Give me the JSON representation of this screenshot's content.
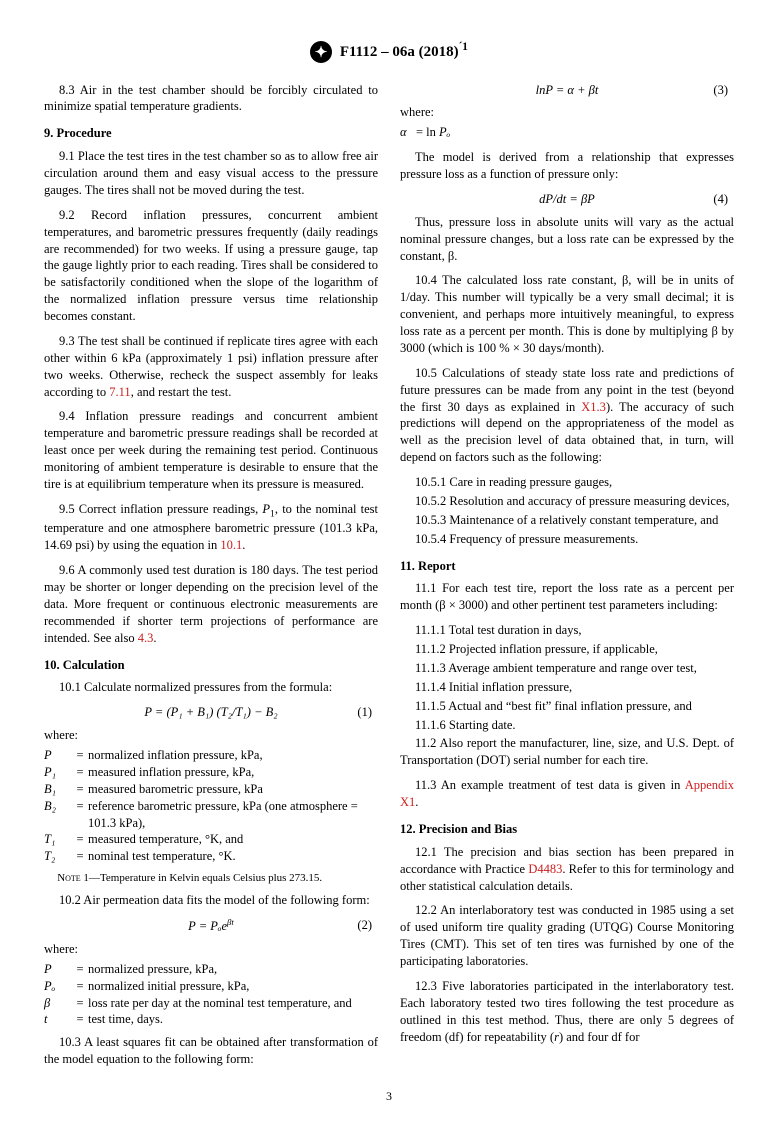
{
  "colors": {
    "link": "#cc2020",
    "text": "#000000",
    "background": "#ffffff"
  },
  "header": {
    "designation": "F1112 – 06a (2018)",
    "eps": "´1"
  },
  "footer": {
    "page": "3"
  },
  "s8": {
    "p3": "8.3 Air in the test chamber should be forcibly circulated to minimize spatial temperature gradients."
  },
  "s9": {
    "title": "9.  Procedure",
    "p1": "9.1 Place the test tires in the test chamber so as to allow free air circulation around them and easy visual access to the pressure gauges. The tires shall not be moved during the test.",
    "p2": "9.2 Record inflation pressures, concurrent ambient temperatures, and barometric pressures frequently (daily readings are recommended) for two weeks. If using a pressure gauge, tap the gauge lightly prior to each reading. Tires shall be considered to be satisfactorily conditioned when the slope of the logarithm of the normalized inflation pressure versus time relationship becomes constant.",
    "p3a": "9.3 The test shall be continued if replicate tires agree with each other within 6 kPa (approximately 1 psi) inflation pressure after two weeks. Otherwise, recheck the suspect assembly for leaks according to ",
    "p3link": "7.11",
    "p3b": ", and restart the test.",
    "p4": "9.4 Inflation pressure readings and concurrent ambient temperature and barometric pressure readings shall be recorded at least once per week during the remaining test period. Continuous monitoring of ambient temperature is desirable to ensure that the tire is at equilibrium temperature when its pressure is measured.",
    "p5a": "9.5 Correct inflation pressure readings, ",
    "p5sym": "P",
    "p5b": ", to the nominal test temperature and one atmosphere barometric pressure (101.3 kPa, 14.69 psi) by using the equation in ",
    "p5link": "10.1",
    "p5c": ".",
    "p6a": "9.6 A commonly used test duration is 180 days. The test period may be shorter or longer depending on the precision level of the data. More frequent or continuous electronic measurements are recommended if shorter term projections of performance are intended. See also ",
    "p6link": "4.3",
    "p6b": "."
  },
  "s10": {
    "title": "10.  Calculation",
    "p1": "10.1 Calculate normalized pressures from the formula:",
    "eq1": "P = (P₁ + B₁) (T₂/T₁) − B₂",
    "eq1n": "(1)",
    "where": "where:",
    "d1": {
      "s": "P",
      "t": "normalized inflation pressure, kPa,"
    },
    "d2": {
      "s": "P₁",
      "t": "measured inflation pressure, kPa,"
    },
    "d3": {
      "s": "B₁",
      "t": "measured barometric pressure, kPa"
    },
    "d4": {
      "s": "B₂",
      "t": "reference barometric pressure, kPa (one atmosphere = 101.3 kPa),"
    },
    "d5": {
      "s": "T₁",
      "t": "measured temperature, °K, and"
    },
    "d6": {
      "s": "T₂",
      "t": "nominal test temperature, °K."
    },
    "note1a": "Note 1—",
    "note1b": "Temperature in Kelvin equals Celsius plus 273.15.",
    "p2": "10.2 Air permeation data fits the model of the following form:",
    "eq2": "P = Pₒe",
    "eq2exp": "βt",
    "eq2n": "(2)",
    "d7": {
      "s": "P",
      "t": "normalized pressure, kPa,"
    },
    "d8": {
      "s": "Pₒ",
      "t": "normalized initial pressure, kPa,"
    },
    "d9": {
      "s": "β",
      "t": "loss rate per day at the nominal test temperature, and"
    },
    "d10": {
      "s": "t",
      "t": "test time, days."
    },
    "p3": "10.3 A least squares fit can be obtained after transformation of the model equation to the following form:",
    "eq3": "lnP = α + βt",
    "eq3n": "(3)",
    "d11a": "α",
    "d11b": "= ln ",
    "d11c": "Pₒ",
    "p3b": "The model is derived from a relationship that expresses pressure loss as a function of pressure only:",
    "eq4": "dP/dt = βP",
    "eq4n": "(4)",
    "p3c": "Thus, pressure loss in absolute units will vary as the actual nominal pressure changes, but a loss rate can be expressed by the constant, β.",
    "p4": "10.4 The calculated loss rate constant, β, will be in units of 1/day. This number will typically be a very small decimal; it is convenient, and perhaps more intuitively meaningful, to express loss rate as a percent per month. This is done by multiplying β by 3000 (which is 100 % × 30 days/month).",
    "p5a": "10.5 Calculations of steady state loss rate and predictions of future pressures can be made from any point in the test (beyond the first 30 days as explained in ",
    "p5link": "X1.3",
    "p5b": "). The accuracy of such predictions will depend on the appropriateness of the model as well as the precision level of data obtained that, in turn, will depend on factors such as the following:",
    "p51": "10.5.1 Care in reading pressure gauges,",
    "p52": "10.5.2 Resolution and accuracy of pressure measuring devices,",
    "p53": "10.5.3 Maintenance of a relatively constant temperature, and",
    "p54": "10.5.4 Frequency of pressure measurements."
  },
  "s11": {
    "title": "11.  Report",
    "p1": "11.1 For each test tire, report the loss rate as a percent per month (β × 3000) and other pertinent test parameters including:",
    "p11": "11.1.1 Total test duration in days,",
    "p12": "11.1.2 Projected inflation pressure, if applicable,",
    "p13": "11.1.3 Average ambient temperature and range over test,",
    "p14": "11.1.4 Initial inflation pressure,",
    "p15": "11.1.5 Actual and “best fit” final inflation pressure, and",
    "p16": "11.1.6 Starting date.",
    "p2": "11.2 Also report the manufacturer, line, size, and U.S. Dept. of Transportation (DOT) serial number for each tire.",
    "p3a": "11.3 An example treatment of test data is given in ",
    "p3link": "Appendix X1",
    "p3b": "."
  },
  "s12": {
    "title": "12.  Precision and Bias",
    "p1a": "12.1 The precision and bias section has been prepared in accordance with Practice ",
    "p1link": "D4483",
    "p1b": ". Refer to this for terminology and other statistical calculation details.",
    "p2": "12.2 An interlaboratory test was conducted in 1985 using a set of used uniform tire quality grading (UTQG) Course Monitoring Tires (CMT). This set of ten tires was furnished by one of the participating laboratories.",
    "p3a": "12.3 Five laboratories participated in the interlaboratory test. Each laboratory tested two tires following the test procedure as outlined in this test method. Thus, there are only 5 degrees of freedom (df) for repeatability (",
    "p3i": "r",
    "p3b": ") and four df for"
  }
}
